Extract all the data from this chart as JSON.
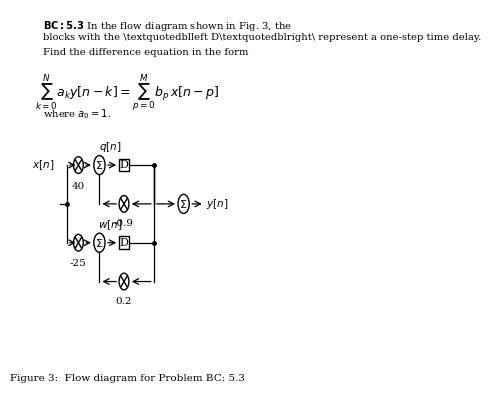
{
  "title_bold": "BC:5.3",
  "title_text": " In the flow diagram shown in Fig. 3, the\nblocks with the “D” represent a one-step time delay.\nFind the difference equation in the form",
  "where_text": "where $a_0 = 1$.",
  "caption": "Figure 3:  Flow diagram for Problem BC: 5.3",
  "bg_color": "#ffffff",
  "text_color": "#000000",
  "diagram": {
    "x_input_label": "$x[n]$",
    "q_label": "$q[n]$",
    "w_label": "$w[n]$",
    "y_label": "$y[n]$",
    "gain_top": "40",
    "gain_feedback_top": "-0.9",
    "gain_bottom": "-25",
    "gain_feedback_bottom": "0.2",
    "D_label": "D"
  }
}
